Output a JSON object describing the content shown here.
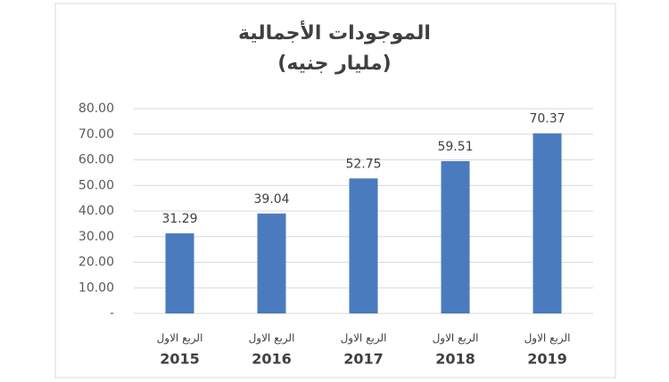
{
  "chart_data": {
    "type": "bar",
    "title": "الموجودات الأجمالية",
    "subtitle": "(مليار جنيه)",
    "categories": [
      [
        "الربع الاول",
        "2015"
      ],
      [
        "الربع الاول",
        "2016"
      ],
      [
        "الربع الاول",
        "2017"
      ],
      [
        "الربع الاول",
        "2018"
      ],
      [
        "الربع الاول",
        "2019"
      ]
    ],
    "values": [
      31.29,
      39.04,
      52.75,
      59.51,
      70.37
    ],
    "color": "#4a7bbf",
    "ylim": [
      0,
      80
    ],
    "yticks": [
      {
        "value": 0,
        "label": "-"
      },
      {
        "value": 10,
        "label": "10.00"
      },
      {
        "value": 20,
        "label": "20.00"
      },
      {
        "value": 30,
        "label": "30.00"
      },
      {
        "value": 40,
        "label": "40.00"
      },
      {
        "value": 50,
        "label": "50.00"
      },
      {
        "value": 60,
        "label": "60.00"
      },
      {
        "value": 70,
        "label": "70.00"
      },
      {
        "value": 80,
        "label": "80.00"
      }
    ],
    "grid": true
  }
}
